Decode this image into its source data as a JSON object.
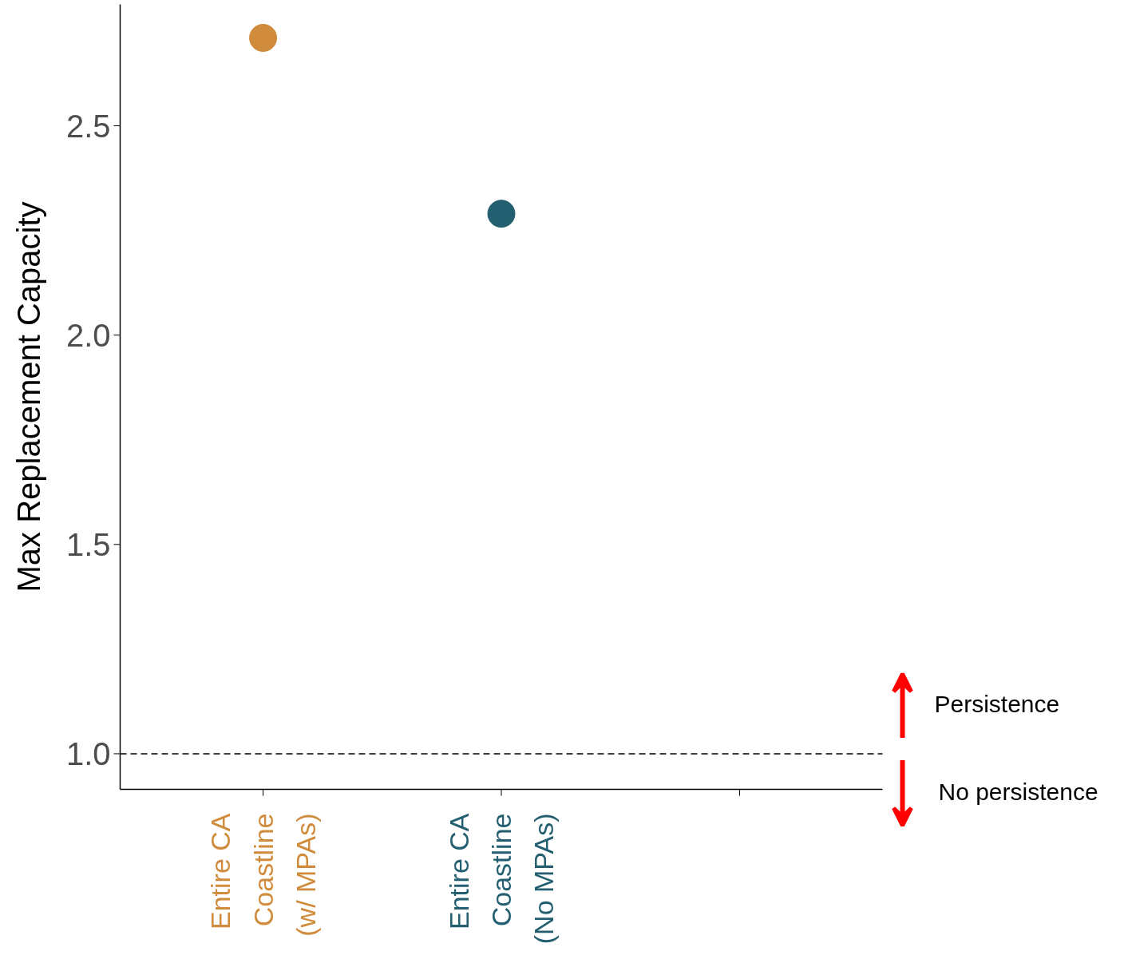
{
  "chart_data": {
    "type": "scatter",
    "ylabel": "Max Replacement Capacity",
    "categories": [
      "Entire CA Coastline (w/ MPAs)",
      "Entire CA Coastline (No MPAs)",
      null
    ],
    "values": [
      2.71,
      2.29,
      null
    ],
    "colors": [
      "#d08c3c",
      "#235f70",
      "#235f70"
    ],
    "ylim": [
      0.915,
      2.79
    ],
    "yticks": [
      {
        "value": 1.0,
        "label": "1.0"
      },
      {
        "value": 1.5,
        "label": "1.5"
      },
      {
        "value": 2.0,
        "label": "2.0"
      },
      {
        "value": 2.5,
        "label": "2.5"
      }
    ],
    "ref_lines": [
      {
        "axis": "y",
        "value": 1.0,
        "line_style": "dashed",
        "color": "#000000"
      }
    ],
    "annotations": [
      "Persistence",
      "No persistence"
    ],
    "marker": "circle",
    "grid": false,
    "legend": false
  }
}
